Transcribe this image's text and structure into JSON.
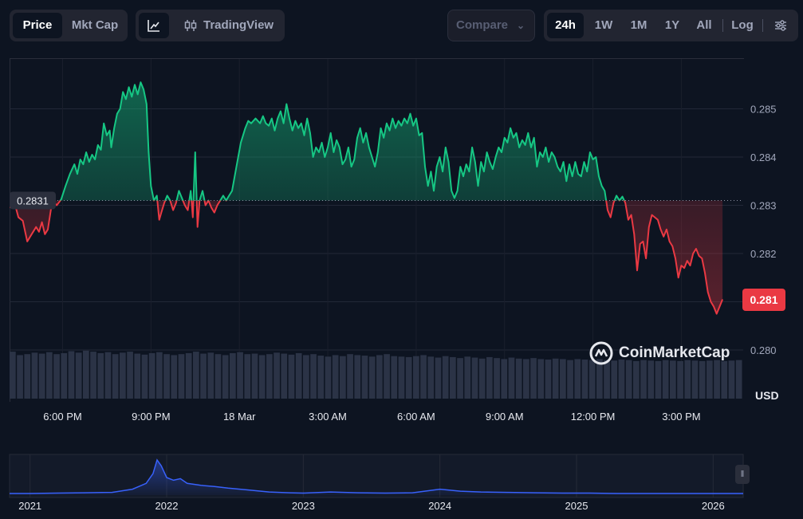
{
  "toolbar": {
    "type_tabs": [
      {
        "label": "Price",
        "active": true
      },
      {
        "label": "Mkt Cap",
        "active": false
      }
    ],
    "line_icon": "line-chart-icon",
    "tradingview_icon": "candlestick-icon",
    "tradingview_label": "TradingView",
    "compare_label": "Compare",
    "range_tabs": [
      {
        "label": "24h",
        "active": true
      },
      {
        "label": "1W",
        "active": false
      },
      {
        "label": "1M",
        "active": false
      },
      {
        "label": "1Y",
        "active": false
      },
      {
        "label": "All",
        "active": false
      }
    ],
    "log_label": "Log",
    "settings_icon": "sliders-icon"
  },
  "colors": {
    "up": "#16c784",
    "down": "#ea3943",
    "background": "#0d1421",
    "volume": "#2b3346",
    "overview_line": "#3861fb"
  },
  "chart_data": {
    "type": "area",
    "reference_price": 0.2831,
    "reference_label": "0.2831",
    "current_price_label": "0.281",
    "ylim": [
      0.27985,
      0.28585
    ],
    "y_ticks": [
      {
        "v": 0.285,
        "label": "0.285"
      },
      {
        "v": 0.284,
        "label": "0.284"
      },
      {
        "v": 0.283,
        "label": "0.283"
      },
      {
        "v": 0.282,
        "label": "0.282"
      },
      {
        "v": 0.281,
        "label": "0.281"
      },
      {
        "v": 0.28,
        "label": "0.280"
      }
    ],
    "x_range": [
      0,
      24.9
    ],
    "x_ticks": [
      {
        "x": 1.8,
        "label": "6:00 PM"
      },
      {
        "x": 4.8,
        "label": "9:00 PM"
      },
      {
        "x": 7.8,
        "label": "18 Mar"
      },
      {
        "x": 10.8,
        "label": "3:00 AM"
      },
      {
        "x": 13.8,
        "label": "6:00 AM"
      },
      {
        "x": 16.8,
        "label": "9:00 AM"
      },
      {
        "x": 19.8,
        "label": "12:00 PM"
      },
      {
        "x": 22.8,
        "label": "3:00 PM"
      }
    ],
    "currency": "USD",
    "watermark": "CoinMarketCap",
    "prices": [
      [
        0.0,
        0.28295
      ],
      [
        0.15,
        0.2831
      ],
      [
        0.3,
        0.28275
      ],
      [
        0.45,
        0.28268
      ],
      [
        0.6,
        0.28225
      ],
      [
        0.75,
        0.2824
      ],
      [
        0.9,
        0.28255
      ],
      [
        1.0,
        0.28245
      ],
      [
        1.1,
        0.28265
      ],
      [
        1.2,
        0.2824
      ],
      [
        1.3,
        0.2825
      ],
      [
        1.45,
        0.2831
      ],
      [
        1.6,
        0.283
      ],
      [
        1.75,
        0.28312
      ],
      [
        1.9,
        0.2834
      ],
      [
        2.05,
        0.28365
      ],
      [
        2.2,
        0.28385
      ],
      [
        2.3,
        0.28365
      ],
      [
        2.4,
        0.28395
      ],
      [
        2.5,
        0.28385
      ],
      [
        2.6,
        0.2841
      ],
      [
        2.7,
        0.2839
      ],
      [
        2.8,
        0.28405
      ],
      [
        2.9,
        0.28395
      ],
      [
        3.0,
        0.28425
      ],
      [
        3.1,
        0.28415
      ],
      [
        3.2,
        0.2847
      ],
      [
        3.3,
        0.28445
      ],
      [
        3.4,
        0.28455
      ],
      [
        3.45,
        0.2842
      ],
      [
        3.55,
        0.2846
      ],
      [
        3.65,
        0.2849
      ],
      [
        3.75,
        0.285
      ],
      [
        3.85,
        0.28535
      ],
      [
        3.95,
        0.2852
      ],
      [
        4.05,
        0.28545
      ],
      [
        4.15,
        0.28525
      ],
      [
        4.25,
        0.2855
      ],
      [
        4.35,
        0.2853
      ],
      [
        4.45,
        0.28555
      ],
      [
        4.55,
        0.2854
      ],
      [
        4.65,
        0.2851
      ],
      [
        4.72,
        0.2841
      ],
      [
        4.8,
        0.2834
      ],
      [
        4.9,
        0.2831
      ],
      [
        5.0,
        0.2832
      ],
      [
        5.08,
        0.2827
      ],
      [
        5.15,
        0.28285
      ],
      [
        5.25,
        0.28305
      ],
      [
        5.35,
        0.2832
      ],
      [
        5.45,
        0.2831
      ],
      [
        5.55,
        0.2829
      ],
      [
        5.65,
        0.28305
      ],
      [
        5.75,
        0.2833
      ],
      [
        5.85,
        0.28315
      ],
      [
        5.95,
        0.283
      ],
      [
        6.05,
        0.2829
      ],
      [
        6.15,
        0.2833
      ],
      [
        6.22,
        0.28275
      ],
      [
        6.3,
        0.2841
      ],
      [
        6.38,
        0.28255
      ],
      [
        6.45,
        0.2831
      ],
      [
        6.55,
        0.2833
      ],
      [
        6.65,
        0.283
      ],
      [
        6.75,
        0.2831
      ],
      [
        6.85,
        0.28295
      ],
      [
        6.95,
        0.28285
      ],
      [
        7.05,
        0.283
      ],
      [
        7.15,
        0.2831
      ],
      [
        7.25,
        0.2832
      ],
      [
        7.35,
        0.2831
      ],
      [
        7.45,
        0.2832
      ],
      [
        7.55,
        0.2833
      ],
      [
        7.7,
        0.2838
      ],
      [
        7.85,
        0.2843
      ],
      [
        8.0,
        0.2846
      ],
      [
        8.1,
        0.28475
      ],
      [
        8.2,
        0.2847
      ],
      [
        8.35,
        0.2848
      ],
      [
        8.5,
        0.2847
      ],
      [
        8.6,
        0.28485
      ],
      [
        8.7,
        0.2847
      ],
      [
        8.8,
        0.28465
      ],
      [
        8.9,
        0.2848
      ],
      [
        9.0,
        0.28455
      ],
      [
        9.1,
        0.2848
      ],
      [
        9.2,
        0.28495
      ],
      [
        9.3,
        0.2847
      ],
      [
        9.4,
        0.2851
      ],
      [
        9.5,
        0.2848
      ],
      [
        9.6,
        0.28455
      ],
      [
        9.7,
        0.28475
      ],
      [
        9.8,
        0.2846
      ],
      [
        9.9,
        0.2847
      ],
      [
        10.0,
        0.28445
      ],
      [
        10.1,
        0.2848
      ],
      [
        10.2,
        0.2845
      ],
      [
        10.3,
        0.284
      ],
      [
        10.4,
        0.2842
      ],
      [
        10.5,
        0.2841
      ],
      [
        10.6,
        0.2843
      ],
      [
        10.7,
        0.284
      ],
      [
        10.8,
        0.2842
      ],
      [
        10.9,
        0.2845
      ],
      [
        11.0,
        0.2841
      ],
      [
        11.1,
        0.28435
      ],
      [
        11.2,
        0.2842
      ],
      [
        11.3,
        0.28385
      ],
      [
        11.4,
        0.28395
      ],
      [
        11.5,
        0.2842
      ],
      [
        11.6,
        0.2838
      ],
      [
        11.7,
        0.28395
      ],
      [
        11.8,
        0.2844
      ],
      [
        11.9,
        0.2846
      ],
      [
        12.0,
        0.2843
      ],
      [
        12.1,
        0.2845
      ],
      [
        12.2,
        0.2842
      ],
      [
        12.3,
        0.284
      ],
      [
        12.4,
        0.2838
      ],
      [
        12.5,
        0.2841
      ],
      [
        12.6,
        0.2846
      ],
      [
        12.7,
        0.2844
      ],
      [
        12.8,
        0.2847
      ],
      [
        12.9,
        0.28455
      ],
      [
        13.0,
        0.2848
      ],
      [
        13.1,
        0.2846
      ],
      [
        13.2,
        0.28475
      ],
      [
        13.3,
        0.28465
      ],
      [
        13.4,
        0.2848
      ],
      [
        13.5,
        0.2847
      ],
      [
        13.6,
        0.2849
      ],
      [
        13.7,
        0.28465
      ],
      [
        13.8,
        0.2848
      ],
      [
        13.9,
        0.28445
      ],
      [
        14.0,
        0.2845
      ],
      [
        14.1,
        0.2838
      ],
      [
        14.2,
        0.2834
      ],
      [
        14.3,
        0.2837
      ],
      [
        14.4,
        0.2833
      ],
      [
        14.5,
        0.2838
      ],
      [
        14.6,
        0.284
      ],
      [
        14.7,
        0.2837
      ],
      [
        14.8,
        0.2842
      ],
      [
        14.9,
        0.2839
      ],
      [
        15.0,
        0.2833
      ],
      [
        15.1,
        0.28315
      ],
      [
        15.2,
        0.2833
      ],
      [
        15.3,
        0.2838
      ],
      [
        15.4,
        0.2836
      ],
      [
        15.5,
        0.28385
      ],
      [
        15.6,
        0.2837
      ],
      [
        15.7,
        0.2842
      ],
      [
        15.8,
        0.2839
      ],
      [
        15.9,
        0.2834
      ],
      [
        16.0,
        0.2839
      ],
      [
        16.1,
        0.2837
      ],
      [
        16.2,
        0.2841
      ],
      [
        16.3,
        0.2839
      ],
      [
        16.4,
        0.28375
      ],
      [
        16.5,
        0.284
      ],
      [
        16.6,
        0.2842
      ],
      [
        16.7,
        0.2841
      ],
      [
        16.8,
        0.2844
      ],
      [
        16.9,
        0.2843
      ],
      [
        17.0,
        0.2846
      ],
      [
        17.1,
        0.2844
      ],
      [
        17.2,
        0.2845
      ],
      [
        17.3,
        0.2842
      ],
      [
        17.4,
        0.28435
      ],
      [
        17.5,
        0.28425
      ],
      [
        17.6,
        0.2845
      ],
      [
        17.7,
        0.2842
      ],
      [
        17.8,
        0.2844
      ],
      [
        17.9,
        0.2838
      ],
      [
        18.0,
        0.2841
      ],
      [
        18.1,
        0.284
      ],
      [
        18.2,
        0.2842
      ],
      [
        18.3,
        0.2839
      ],
      [
        18.4,
        0.2841
      ],
      [
        18.5,
        0.284
      ],
      [
        18.6,
        0.2838
      ],
      [
        18.7,
        0.2837
      ],
      [
        18.8,
        0.2839
      ],
      [
        18.9,
        0.2835
      ],
      [
        19.0,
        0.28385
      ],
      [
        19.1,
        0.2836
      ],
      [
        19.2,
        0.2839
      ],
      [
        19.3,
        0.28365
      ],
      [
        19.4,
        0.2836
      ],
      [
        19.5,
        0.2839
      ],
      [
        19.6,
        0.2837
      ],
      [
        19.7,
        0.2841
      ],
      [
        19.8,
        0.28395
      ],
      [
        19.9,
        0.284
      ],
      [
        20.0,
        0.2836
      ],
      [
        20.1,
        0.2834
      ],
      [
        20.2,
        0.2833
      ],
      [
        20.3,
        0.2829
      ],
      [
        20.4,
        0.28275
      ],
      [
        20.5,
        0.28305
      ],
      [
        20.6,
        0.2832
      ],
      [
        20.7,
        0.2831
      ],
      [
        20.8,
        0.28318
      ],
      [
        20.9,
        0.28305
      ],
      [
        21.0,
        0.2827
      ],
      [
        21.1,
        0.2828
      ],
      [
        21.2,
        0.2824
      ],
      [
        21.3,
        0.28165
      ],
      [
        21.4,
        0.2822
      ],
      [
        21.5,
        0.28225
      ],
      [
        21.6,
        0.2819
      ],
      [
        21.7,
        0.28255
      ],
      [
        21.8,
        0.2828
      ],
      [
        21.9,
        0.28275
      ],
      [
        22.0,
        0.2827
      ],
      [
        22.1,
        0.2825
      ],
      [
        22.2,
        0.28235
      ],
      [
        22.3,
        0.2825
      ],
      [
        22.4,
        0.28225
      ],
      [
        22.5,
        0.28215
      ],
      [
        22.6,
        0.2819
      ],
      [
        22.7,
        0.2815
      ],
      [
        22.8,
        0.28175
      ],
      [
        22.9,
        0.2817
      ],
      [
        23.0,
        0.28185
      ],
      [
        23.1,
        0.28175
      ],
      [
        23.2,
        0.282
      ],
      [
        23.3,
        0.2821
      ],
      [
        23.4,
        0.28195
      ],
      [
        23.5,
        0.2819
      ],
      [
        23.6,
        0.2816
      ],
      [
        23.7,
        0.2812
      ],
      [
        23.8,
        0.281
      ],
      [
        23.9,
        0.2809
      ],
      [
        24.0,
        0.28075
      ],
      [
        24.1,
        0.2809
      ],
      [
        24.2,
        0.28105
      ]
    ],
    "volume_level": [
      0.95,
      0.88,
      0.9,
      0.93,
      0.91,
      0.94,
      0.9,
      0.92,
      0.96,
      0.93,
      0.97,
      0.95,
      0.92,
      0.94,
      0.9,
      0.93,
      0.95,
      0.91,
      0.89,
      0.92,
      0.94,
      0.9,
      0.88,
      0.9,
      0.92,
      0.95,
      0.91,
      0.93,
      0.9,
      0.88,
      0.92,
      0.94,
      0.9,
      0.91,
      0.88,
      0.9,
      0.93,
      0.91,
      0.89,
      0.92,
      0.88,
      0.9,
      0.87,
      0.85,
      0.88,
      0.86,
      0.9,
      0.88,
      0.87,
      0.85,
      0.88,
      0.9,
      0.86,
      0.85,
      0.84,
      0.86,
      0.88,
      0.85,
      0.83,
      0.86,
      0.84,
      0.82,
      0.85,
      0.83,
      0.81,
      0.84,
      0.82,
      0.8,
      0.83,
      0.81,
      0.8,
      0.82,
      0.8,
      0.79,
      0.81,
      0.8,
      0.78,
      0.8,
      0.79,
      0.78,
      0.8,
      0.78,
      0.77,
      0.79,
      0.78,
      0.76,
      0.78,
      0.77,
      0.76,
      0.78,
      0.77,
      0.76,
      0.78,
      0.77,
      0.76,
      0.77,
      0.78,
      0.76,
      0.77,
      0.78
    ],
    "overview": {
      "x_ticks": [
        {
          "x": 2021.0,
          "label": "2021"
        },
        {
          "x": 2022.0,
          "label": "2022"
        },
        {
          "x": 2023.0,
          "label": "2023"
        },
        {
          "x": 2024.0,
          "label": "2024"
        },
        {
          "x": 2025.0,
          "label": "2025"
        },
        {
          "x": 2026.0,
          "label": "2026"
        }
      ],
      "x_range": [
        2020.85,
        2026.22
      ],
      "ylim": [
        0,
        1
      ],
      "points": [
        [
          2020.85,
          0.04
        ],
        [
          2021.0,
          0.04
        ],
        [
          2021.2,
          0.05
        ],
        [
          2021.4,
          0.06
        ],
        [
          2021.6,
          0.07
        ],
        [
          2021.75,
          0.15
        ],
        [
          2021.85,
          0.3
        ],
        [
          2021.9,
          0.55
        ],
        [
          2021.93,
          0.9
        ],
        [
          2021.96,
          0.75
        ],
        [
          2022.0,
          0.45
        ],
        [
          2022.05,
          0.38
        ],
        [
          2022.1,
          0.42
        ],
        [
          2022.15,
          0.3
        ],
        [
          2022.25,
          0.25
        ],
        [
          2022.35,
          0.22
        ],
        [
          2022.45,
          0.18
        ],
        [
          2022.6,
          0.13
        ],
        [
          2022.75,
          0.08
        ],
        [
          2022.9,
          0.06
        ],
        [
          2023.0,
          0.05
        ],
        [
          2023.2,
          0.08
        ],
        [
          2023.4,
          0.06
        ],
        [
          2023.6,
          0.05
        ],
        [
          2023.8,
          0.06
        ],
        [
          2024.0,
          0.15
        ],
        [
          2024.15,
          0.1
        ],
        [
          2024.3,
          0.08
        ],
        [
          2024.5,
          0.07
        ],
        [
          2024.7,
          0.06
        ],
        [
          2024.9,
          0.05
        ],
        [
          2025.1,
          0.05
        ],
        [
          2025.3,
          0.04
        ],
        [
          2025.5,
          0.04
        ],
        [
          2025.7,
          0.04
        ],
        [
          2025.9,
          0.04
        ],
        [
          2026.1,
          0.04
        ],
        [
          2026.22,
          0.04
        ]
      ]
    }
  }
}
